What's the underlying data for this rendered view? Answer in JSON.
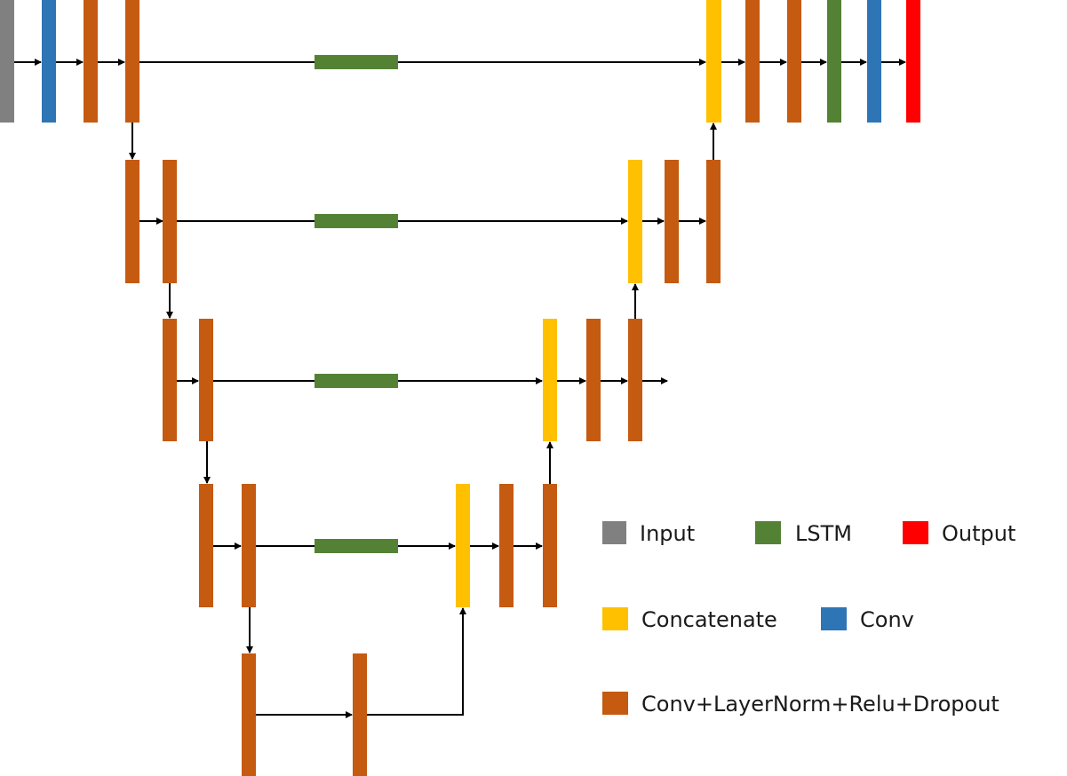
{
  "colors": {
    "input": "#808080",
    "conv": "#2e75b6",
    "conv_block": "#c55a11",
    "lstm": "#548235",
    "concatenate": "#ffc000",
    "output": "#ff0000"
  },
  "legend": {
    "input": "Input",
    "lstm": "LSTM",
    "output": "Output",
    "concatenate": "Concatenate",
    "conv": "Conv",
    "conv_block": "Conv+LayerNorm+Relu+Dropout"
  }
}
